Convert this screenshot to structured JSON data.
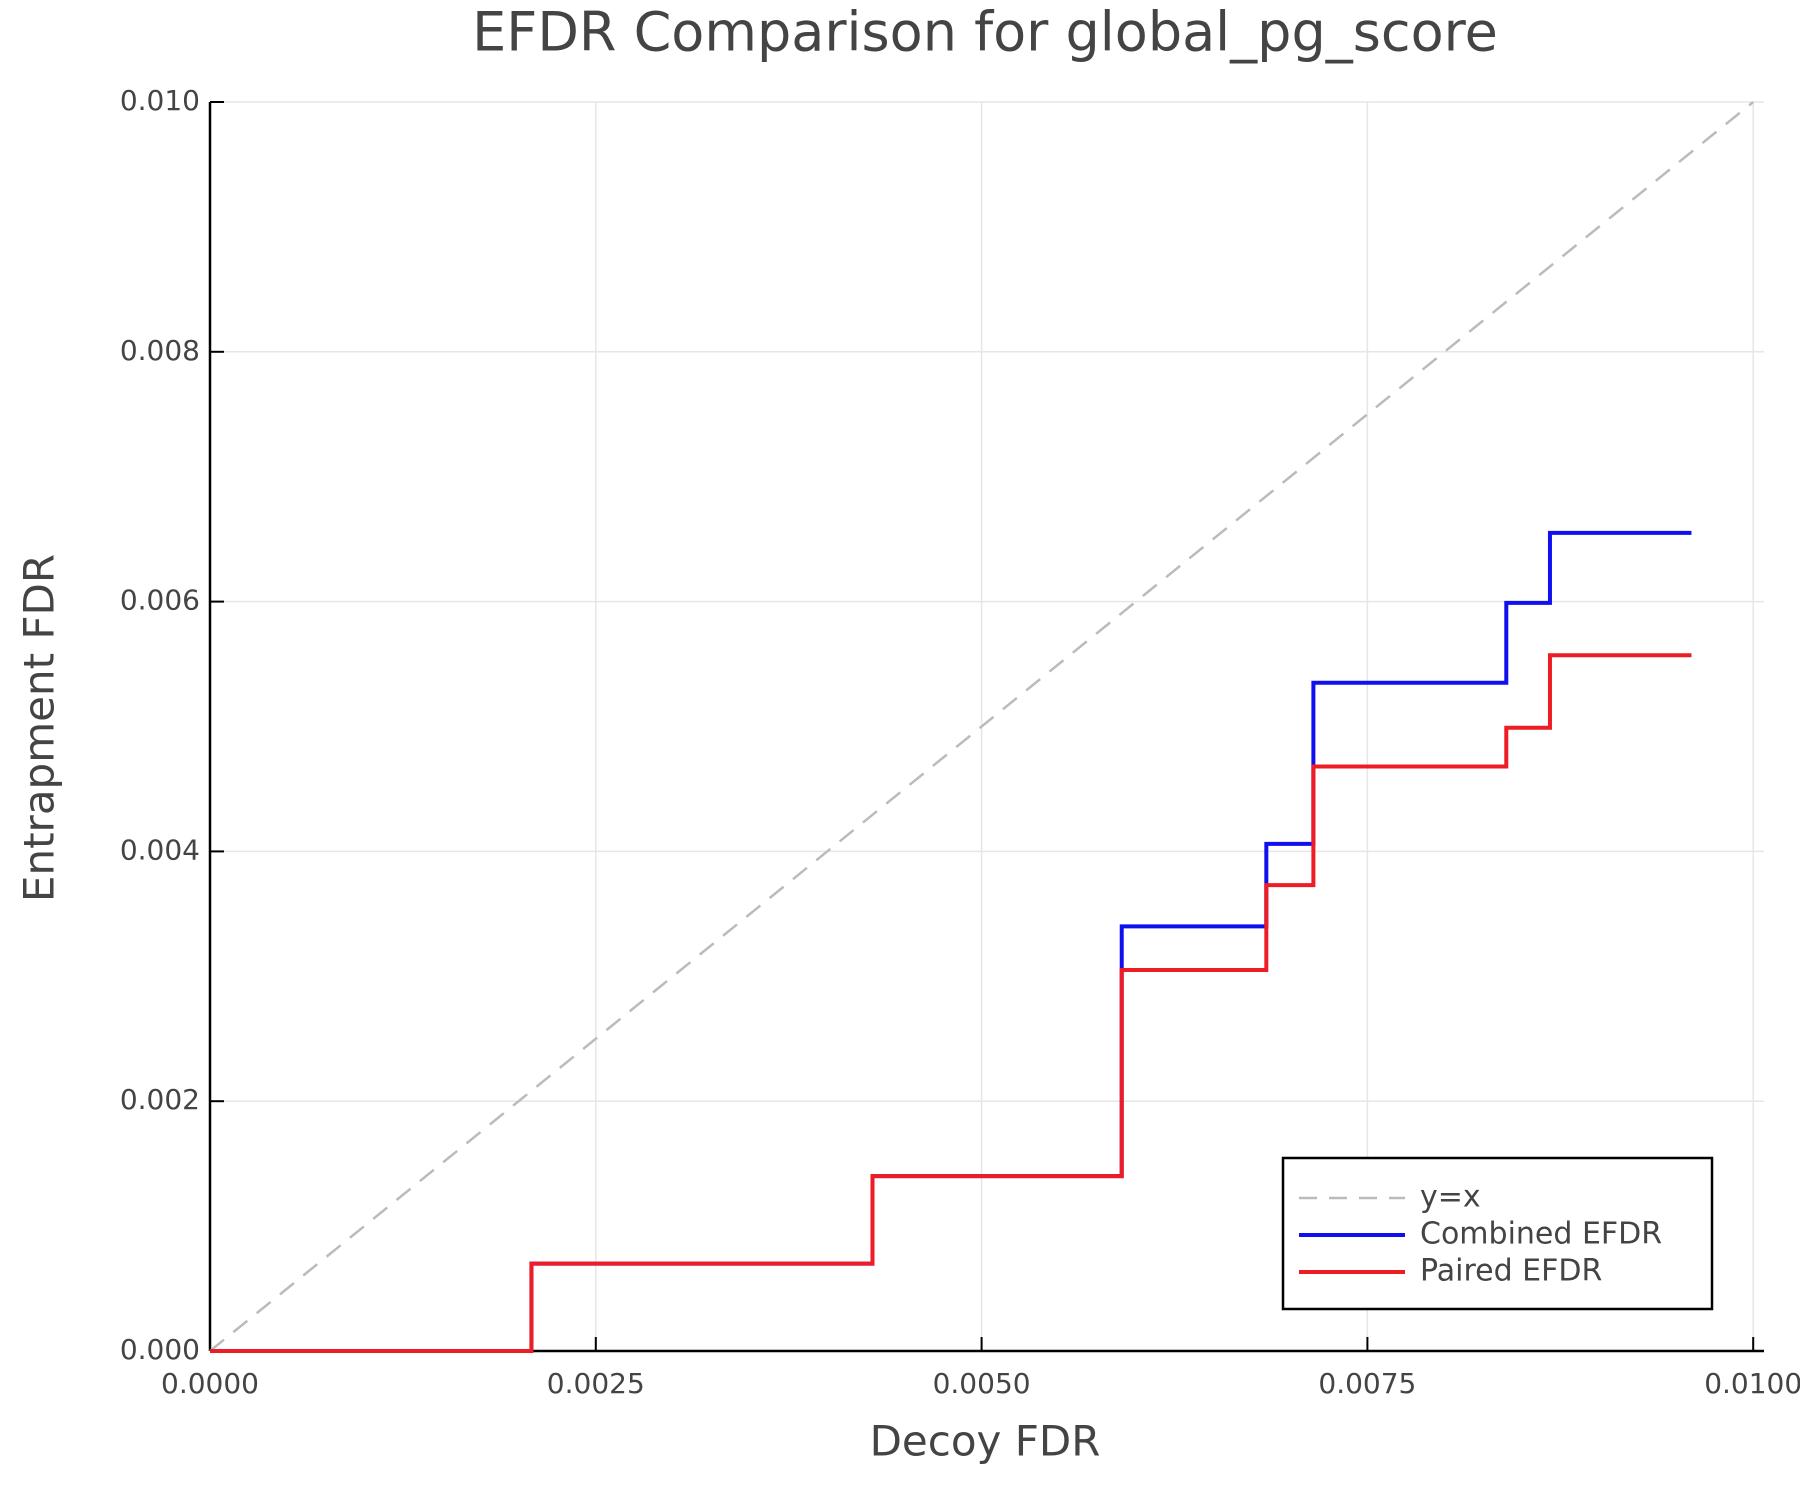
{
  "chart_data": {
    "type": "line",
    "step": "post",
    "title": "EFDR Comparison for global_pg_score",
    "xlabel": "Decoy FDR",
    "ylabel": "Entrapment FDR",
    "xlim": [
      0,
      0.01007
    ],
    "ylim": [
      0,
      0.01
    ],
    "xticks": [
      {
        "value": 0,
        "label": "0.0000"
      },
      {
        "value": 0.0025,
        "label": "0.0025"
      },
      {
        "value": 0.005,
        "label": "0.0050"
      },
      {
        "value": 0.0075,
        "label": "0.0075"
      },
      {
        "value": 0.01,
        "label": "0.0100"
      }
    ],
    "yticks": [
      {
        "value": 0,
        "label": "0.000"
      },
      {
        "value": 0.002,
        "label": "0.002"
      },
      {
        "value": 0.004,
        "label": "0.004"
      },
      {
        "value": 0.006,
        "label": "0.006"
      },
      {
        "value": 0.008,
        "label": "0.008"
      },
      {
        "value": 0.01,
        "label": "0.010"
      }
    ],
    "grid": true,
    "legend": "bottom right",
    "series": [
      {
        "name": "y=x",
        "color": "#bbbbbb",
        "dashed": true,
        "x": [
          0,
          0.01
        ],
        "values": [
          0,
          0.01
        ]
      },
      {
        "name": "Combined EFDR",
        "color": "#1010ee",
        "x": [
          0,
          0.002083,
          0.004293,
          0.005908,
          0.006845,
          0.00715,
          0.0084,
          0.008683,
          0.0096
        ],
        "values": [
          0,
          0.0007,
          0.0014,
          0.0034,
          0.00406,
          0.00535,
          0.00599,
          0.00655,
          0.00655
        ]
      },
      {
        "name": "Paired EFDR",
        "color": "#ee1c24",
        "x": [
          0,
          0.002083,
          0.004293,
          0.005908,
          0.006845,
          0.00715,
          0.0084,
          0.008683,
          0.0096
        ],
        "values": [
          0,
          0.0007,
          0.0014,
          0.00305,
          0.00373,
          0.00468,
          0.00499,
          0.00557,
          0.00557
        ]
      }
    ]
  }
}
